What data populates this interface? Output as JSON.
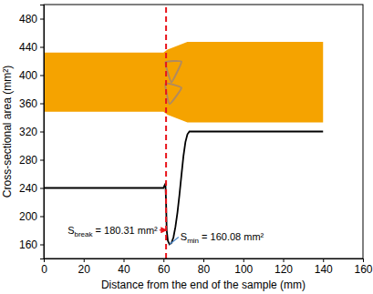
{
  "chart_data": {
    "type": "line",
    "x_label": "Distance from the end of the sample (mm)",
    "y_label": "Cross-sectional area (mm²)",
    "xlim": [
      0,
      160
    ],
    "xticks": [
      0,
      20,
      40,
      60,
      80,
      100,
      120,
      140,
      160
    ],
    "ylim": [
      140,
      500
    ],
    "yticks": [
      160,
      200,
      240,
      280,
      320,
      360,
      400,
      440,
      480
    ],
    "grid": false,
    "x": [
      0,
      20,
      40,
      58,
      60,
      60.6,
      61,
      61.3,
      61.6,
      62.2,
      63,
      64,
      65,
      66,
      67,
      68,
      69,
      70,
      71,
      72,
      73,
      80,
      100,
      120,
      140
    ],
    "series": [
      {
        "color": "#000000",
        "line_style": "solid",
        "values": [
          240,
          240,
          240,
          240,
          240,
          244,
          246,
          220,
          180.31,
          165,
          160.08,
          162,
          170,
          185,
          205,
          230,
          258,
          285,
          305,
          316,
          320,
          320,
          320,
          320,
          320
        ]
      }
    ],
    "reference_line": {
      "x": 61.3,
      "color": "#e8141b",
      "line_style": "dashed"
    },
    "annotations": [
      {
        "label": "S",
        "subscript": "break",
        "text": " = 180.31 mm²",
        "x": 61.6,
        "y": 180.31,
        "color": "#e8141b"
      },
      {
        "label": "S",
        "subscript": "min",
        "text": " = 160.08 mm²",
        "x": 63,
        "y": 160.08,
        "color": "#4a86c8"
      }
    ]
  }
}
